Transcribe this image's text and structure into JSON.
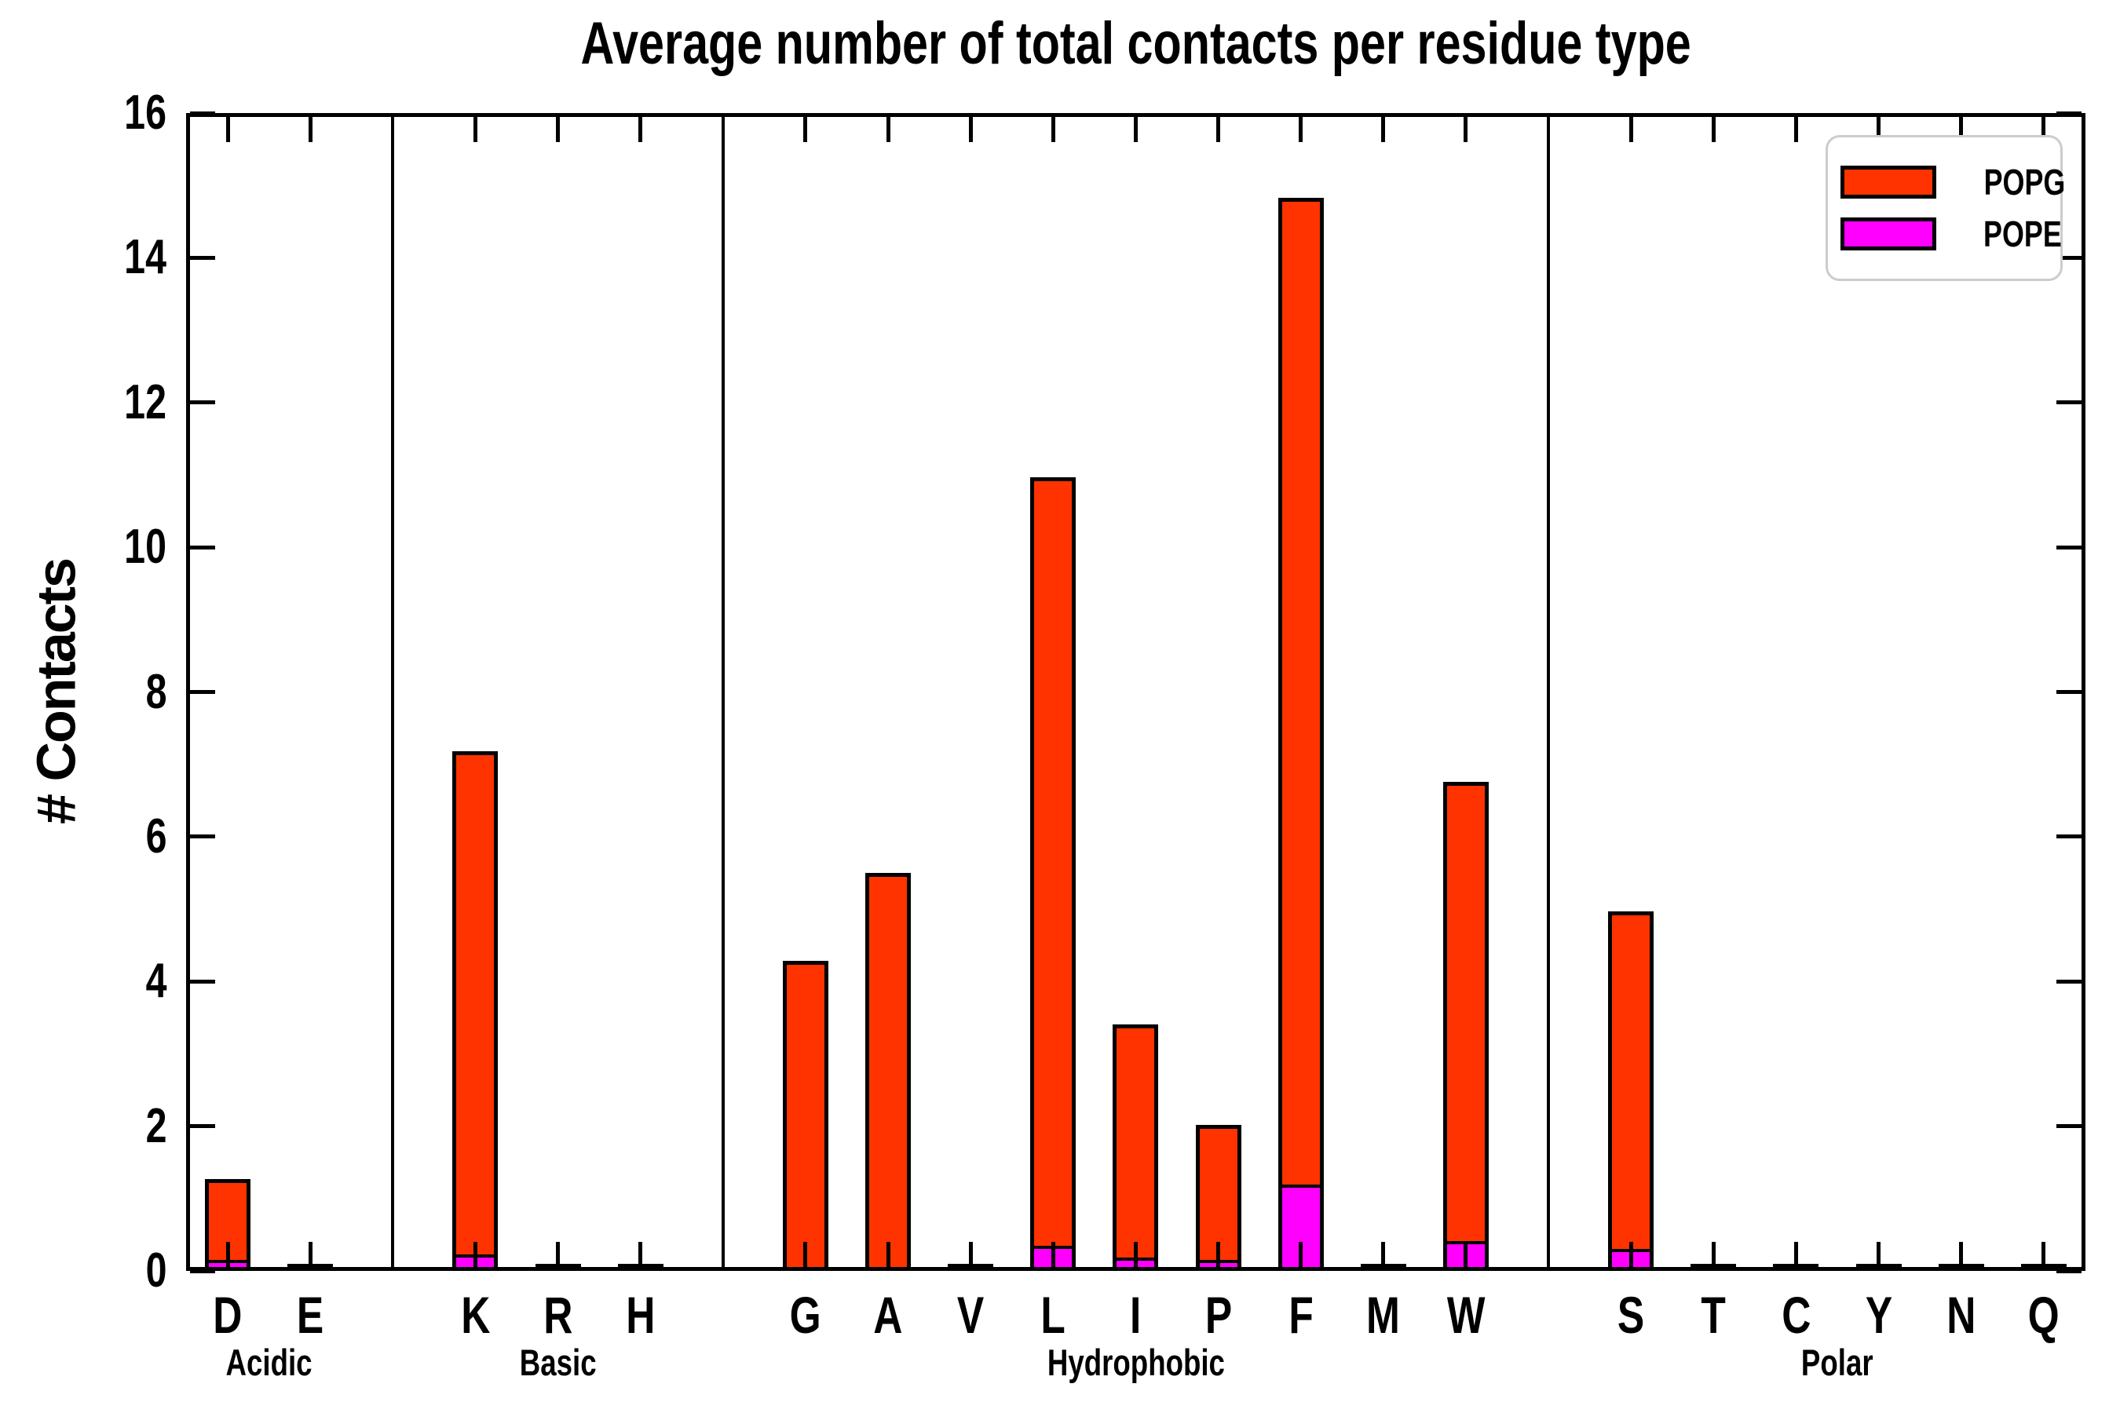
{
  "chart_data": {
    "type": "bar",
    "stacked": true,
    "title": "Average number of total contacts per residue type",
    "ylabel": "# Contacts",
    "ylim": [
      0,
      16
    ],
    "yticks": [
      0,
      2,
      4,
      6,
      8,
      10,
      12,
      14,
      16
    ],
    "grid": false,
    "legend_position": "upper right",
    "groups": [
      {
        "label": "Acidic",
        "residues": [
          "D",
          "E"
        ]
      },
      {
        "label": "Basic",
        "residues": [
          "K",
          "R",
          "H"
        ]
      },
      {
        "label": "Hydrophobic",
        "residues": [
          "G",
          "A",
          "V",
          "L",
          "I",
          "P",
          "F",
          "M",
          "W"
        ]
      },
      {
        "label": "Polar",
        "residues": [
          "S",
          "T",
          "C",
          "Y",
          "N",
          "Q"
        ]
      }
    ],
    "categories": [
      "D",
      "E",
      "K",
      "R",
      "H",
      "G",
      "A",
      "V",
      "L",
      "I",
      "P",
      "F",
      "M",
      "W",
      "S",
      "T",
      "C",
      "Y",
      "N",
      "Q"
    ],
    "series": [
      {
        "name": "POPG",
        "color": "#ff3300",
        "values": [
          1.12,
          0.02,
          6.95,
          0.02,
          0.02,
          4.23,
          5.45,
          0.02,
          10.62,
          3.23,
          1.87,
          13.64,
          0.02,
          6.35,
          4.67,
          0.02,
          0.02,
          0.02,
          0.02,
          0.02
        ]
      },
      {
        "name": "POPE",
        "color": "#ff00ff",
        "values": [
          0.15,
          0,
          0.23,
          0,
          0,
          0.05,
          0.05,
          0,
          0.35,
          0.18,
          0.15,
          1.19,
          0,
          0.41,
          0.3,
          0,
          0,
          0,
          0,
          0
        ]
      }
    ],
    "totals": [
      1.27,
      0.02,
      7.18,
      0.02,
      0.02,
      4.28,
      5.5,
      0.02,
      10.97,
      3.41,
      2.02,
      14.83,
      0.02,
      6.76,
      4.97,
      0.02,
      0.02,
      0.02,
      0.02,
      0.02
    ]
  }
}
